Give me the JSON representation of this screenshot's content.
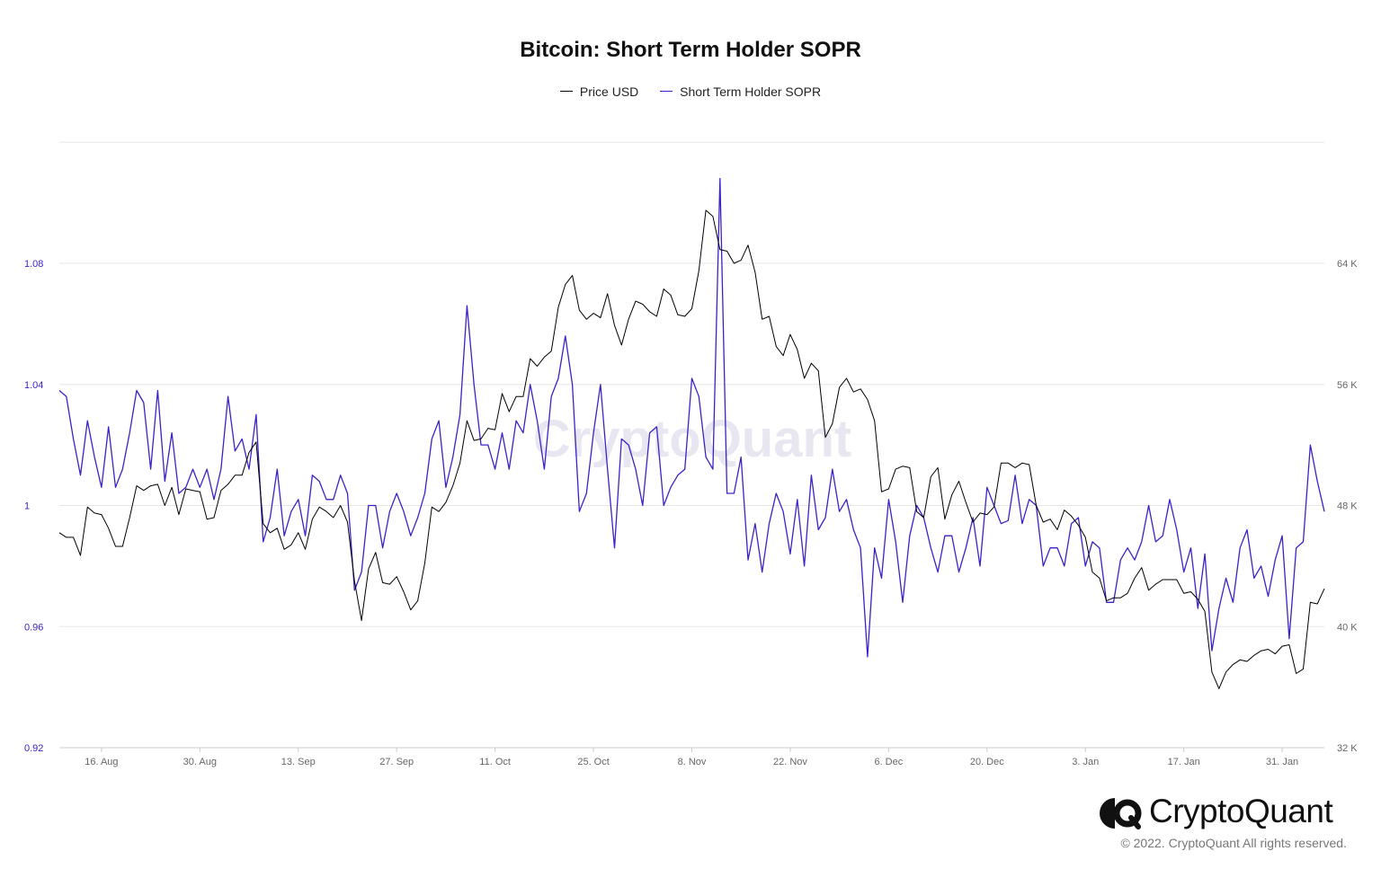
{
  "chart_data": {
    "type": "line",
    "title": "Bitcoin: Short Term Holder SOPR",
    "legend_position": "top-center",
    "grid": true,
    "x_tick_labels": [
      "16. Aug",
      "30. Aug",
      "13. Sep",
      "27. Sep",
      "11. Oct",
      "25. Oct",
      "8. Nov",
      "22. Nov",
      "6. Dec",
      "20. Dec",
      "3. Jan",
      "17. Jan",
      "31. Jan"
    ],
    "y_left": {
      "ticks": [
        "0.92",
        "0.96",
        "1",
        "1.04",
        "1.08"
      ],
      "range": [
        0.92,
        1.1
      ],
      "color": "#3b22c8"
    },
    "y_right": {
      "ticks": [
        "32 K",
        "40 K",
        "48 K",
        "56 K",
        "64 K"
      ],
      "range": [
        32000,
        68000
      ],
      "color": "#666666"
    },
    "x_start_index": 0,
    "watermark": "CryptoQuant",
    "series": [
      {
        "name": "Price USD",
        "axis": "right",
        "color": "#000000",
        "values": [
          46200,
          45900,
          45900,
          44700,
          47900,
          47500,
          47400,
          46500,
          45300,
          45300,
          47200,
          49300,
          49000,
          49300,
          49400,
          48000,
          49200,
          47400,
          49100,
          49000,
          48900,
          47100,
          47200,
          49000,
          49400,
          50000,
          50000,
          51500,
          52200,
          46800,
          46200,
          46500,
          45100,
          45400,
          46200,
          45100,
          47100,
          47900,
          47600,
          47200,
          48000,
          46900,
          43000,
          40400,
          43800,
          44900,
          42900,
          42800,
          43300,
          42300,
          41100,
          41700,
          44200,
          47900,
          47600,
          48200,
          49300,
          50800,
          53600,
          52300,
          52400,
          53100,
          53000,
          55400,
          54200,
          55200,
          55200,
          57700,
          57200,
          57800,
          58200,
          61100,
          62600,
          63200,
          60900,
          60300,
          60700,
          60400,
          62000,
          59900,
          58600,
          60300,
          61500,
          61300,
          60800,
          60500,
          62300,
          61900,
          60600,
          60500,
          61000,
          63500,
          67500,
          67100,
          64900,
          64800,
          64000,
          64200,
          65200,
          63400,
          60300,
          60500,
          58500,
          57900,
          59300,
          58300,
          56400,
          57400,
          56900,
          52500,
          53400,
          55800,
          56400,
          55500,
          55700,
          55000,
          53600,
          48900,
          49100,
          50400,
          50600,
          50500,
          47600,
          47200,
          49900,
          50500,
          47100,
          48700,
          49600,
          48200,
          46900,
          47500,
          47400,
          47900,
          50800,
          50800,
          50500,
          50800,
          50700,
          48000,
          46900,
          47100,
          46400,
          47700,
          47300,
          46700,
          45900,
          43600,
          43200,
          41700,
          41900,
          41900,
          42200,
          43200,
          43900,
          42400,
          42800,
          43100,
          43100,
          43100,
          42200,
          42300,
          41800,
          41000,
          37000,
          35900,
          37000,
          37500,
          37800,
          37700,
          38100,
          38400,
          38500,
          38200,
          38700,
          38800,
          36900,
          37200,
          41600,
          41500,
          42500
        ]
      },
      {
        "name": "Short Term Holder SOPR",
        "axis": "left",
        "color": "#3b22c8",
        "values": [
          1.038,
          1.036,
          1.022,
          1.01,
          1.028,
          1.016,
          1.006,
          1.026,
          1.006,
          1.012,
          1.024,
          1.038,
          1.034,
          1.012,
          1.038,
          1.008,
          1.024,
          1.004,
          1.006,
          1.012,
          1.006,
          1.012,
          1.002,
          1.012,
          1.036,
          1.018,
          1.022,
          1.012,
          1.03,
          0.988,
          0.996,
          1.012,
          0.99,
          0.998,
          1.002,
          0.99,
          1.01,
          1.008,
          1.002,
          1.002,
          1.01,
          1.004,
          0.972,
          0.978,
          1.0,
          1.0,
          0.986,
          0.998,
          1.004,
          0.998,
          0.99,
          0.996,
          1.004,
          1.022,
          1.028,
          1.006,
          1.016,
          1.03,
          1.066,
          1.04,
          1.02,
          1.02,
          1.012,
          1.024,
          1.012,
          1.028,
          1.024,
          1.04,
          1.028,
          1.012,
          1.036,
          1.042,
          1.056,
          1.04,
          0.998,
          1.004,
          1.024,
          1.04,
          1.012,
          0.986,
          1.022,
          1.02,
          1.012,
          1.0,
          1.024,
          1.026,
          1.0,
          1.006,
          1.01,
          1.012,
          1.042,
          1.036,
          1.016,
          1.012,
          1.108,
          1.004,
          1.004,
          1.016,
          0.982,
          0.994,
          0.978,
          0.994,
          1.004,
          0.998,
          0.984,
          1.002,
          0.98,
          1.01,
          0.992,
          0.996,
          1.012,
          0.998,
          1.002,
          0.992,
          0.986,
          0.95,
          0.986,
          0.976,
          1.002,
          0.988,
          0.968,
          0.99,
          1.0,
          0.996,
          0.986,
          0.978,
          0.99,
          0.99,
          0.978,
          0.986,
          0.996,
          0.98,
          1.006,
          1.0,
          0.994,
          0.995,
          1.01,
          0.994,
          1.002,
          1.0,
          0.98,
          0.986,
          0.986,
          0.98,
          0.994,
          0.996,
          0.98,
          0.988,
          0.986,
          0.968,
          0.968,
          0.982,
          0.986,
          0.982,
          0.988,
          1.0,
          0.988,
          0.99,
          1.002,
          0.992,
          0.978,
          0.986,
          0.966,
          0.984,
          0.952,
          0.966,
          0.976,
          0.968,
          0.986,
          0.992,
          0.976,
          0.98,
          0.97,
          0.982,
          0.99,
          0.956,
          0.986,
          0.988,
          1.02,
          1.008,
          0.998
        ]
      }
    ]
  },
  "footer": {
    "brand": "CryptoQuant",
    "copyright": "© 2022. CryptoQuant All rights reserved."
  }
}
